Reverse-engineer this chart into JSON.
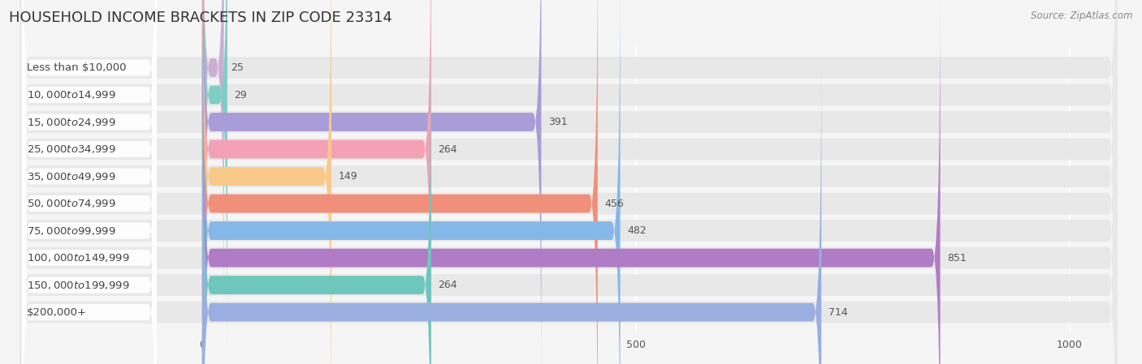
{
  "title": "HOUSEHOLD INCOME BRACKETS IN ZIP CODE 23314",
  "source": "Source: ZipAtlas.com",
  "categories": [
    "Less than $10,000",
    "$10,000 to $14,999",
    "$15,000 to $24,999",
    "$25,000 to $34,999",
    "$35,000 to $49,999",
    "$50,000 to $74,999",
    "$75,000 to $99,999",
    "$100,000 to $149,999",
    "$150,000 to $199,999",
    "$200,000+"
  ],
  "values": [
    25,
    29,
    391,
    264,
    149,
    456,
    482,
    851,
    264,
    714
  ],
  "bar_colors": [
    "#c9aed6",
    "#7ecec4",
    "#a89dd6",
    "#f4a0b5",
    "#f9c98a",
    "#f0907a",
    "#85b8e8",
    "#b07cc6",
    "#6ec6bc",
    "#9aaee0"
  ],
  "background_color": "#f5f5f5",
  "bar_background_color": "#e8e8e8",
  "data_min": 0,
  "data_max": 1000,
  "xticks": [
    0,
    500,
    1000
  ],
  "xlim_left": -220,
  "xlim_right": 1060,
  "title_fontsize": 13,
  "label_fontsize": 9.5,
  "value_fontsize": 9,
  "source_fontsize": 8.5
}
